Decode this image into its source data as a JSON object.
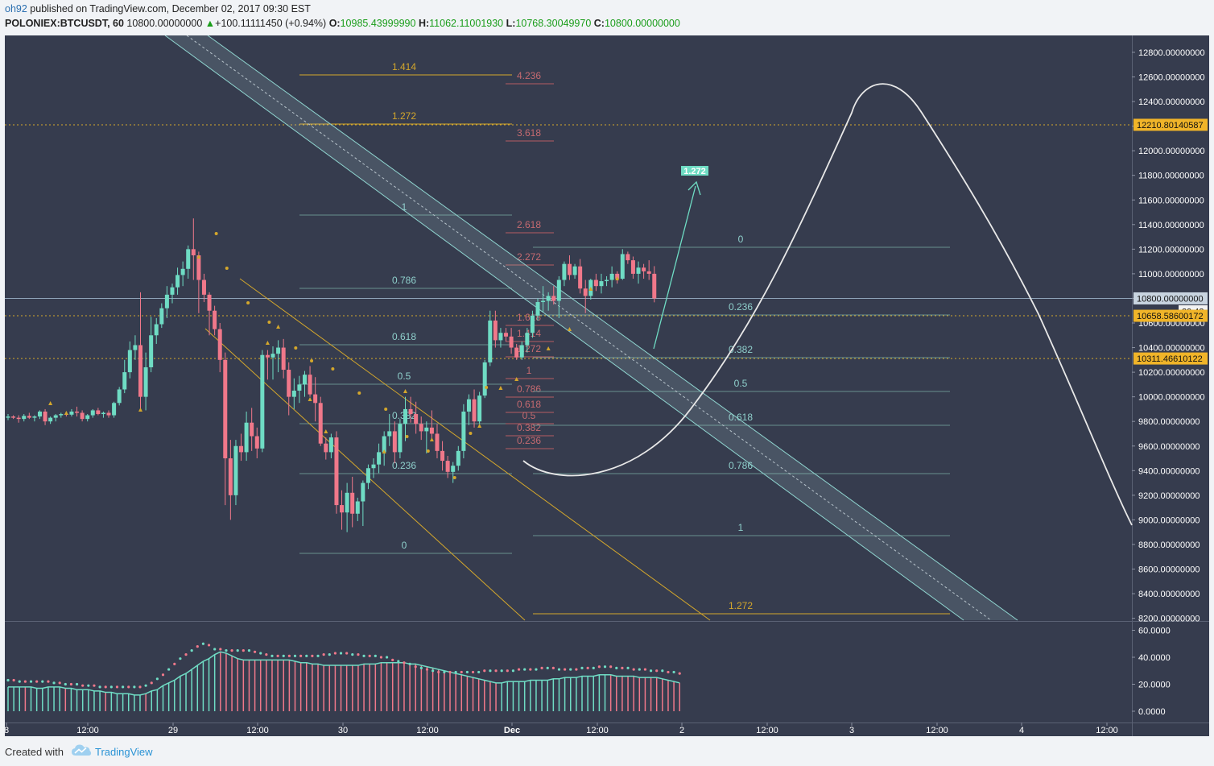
{
  "header": {
    "user": "oh92",
    "published": "published on TradingView.com, December 02, 2017 09:30 EST",
    "symbol": "POLONIEX:BTCUSDT, 60",
    "last": "10800.00000000",
    "change_arrow": "▲",
    "change": "+100.11111450 (+0.94%)",
    "o_label": "O:",
    "o": "10985.43999990",
    "h_label": "H:",
    "h": "11062.11001930",
    "l_label": "L:",
    "l": "10768.30049970",
    "c_label": "C:",
    "c": "10800.00000000"
  },
  "footer": {
    "created": "Created with",
    "brand": "TradingView"
  },
  "colors": {
    "background": "#363c4e",
    "up": "#6fdcc4",
    "down": "#f0788a",
    "grid": "#434a5e",
    "fib": "#6aa7a4",
    "fib_ext": "#b55d62",
    "gold": "#d4a72c",
    "channel": "#8fd4cf",
    "white": "#e8e8e8"
  },
  "chart_data": [
    {
      "type": "candlestick",
      "title": "POLONIEX:BTCUSDT, 60",
      "ylim": [
        8100,
        12900
      ],
      "y_ticks": [
        "12800.00000000",
        "12600.00000000",
        "12400.00000000",
        "12200.00000000",
        "12000.00000000",
        "11800.00000000",
        "11600.00000000",
        "11400.00000000",
        "11200.00000000",
        "11000.00000000",
        "10800.00000000",
        "10600.00000000",
        "10400.00000000",
        "10200.00000000",
        "10000.00000000",
        "9800.00000000",
        "9600.00000000",
        "9400.00000000",
        "9200.00000000",
        "9000.00000000",
        "8800.00000000",
        "8600.00000000",
        "8400.00000000",
        "8200.00000000"
      ],
      "x_ticks": [
        "8",
        "12:00",
        "29",
        "12:00",
        "30",
        "12:00",
        "Dec",
        "12:00",
        "2",
        "12:00",
        "3",
        "12:00",
        "4",
        "12:00"
      ],
      "price_labels": [
        {
          "text": "12210.80140587",
          "price": 12210.8,
          "style": "gold"
        },
        {
          "text": "10800.00000000",
          "price": 10800,
          "style": "current"
        },
        {
          "text": "29:43",
          "price": 10652,
          "style": "timer"
        },
        {
          "text": "10658.58600172",
          "price": 10658.586,
          "style": "gold"
        },
        {
          "text": "10311.46610122",
          "price": 10311.466,
          "style": "gold"
        }
      ],
      "candles_ohlc": [
        [
          9830,
          9860,
          9810,
          9840
        ],
        [
          9840,
          9850,
          9820,
          9830
        ],
        [
          9830,
          9850,
          9790,
          9820
        ],
        [
          9820,
          9860,
          9800,
          9845
        ],
        [
          9845,
          9870,
          9820,
          9830
        ],
        [
          9830,
          9850,
          9800,
          9840
        ],
        [
          9840,
          9890,
          9820,
          9880
        ],
        [
          9880,
          9900,
          9770,
          9800
        ],
        [
          9800,
          9840,
          9780,
          9830
        ],
        [
          9830,
          9860,
          9800,
          9850
        ],
        [
          9850,
          9870,
          9830,
          9860
        ],
        [
          9860,
          9880,
          9840,
          9855
        ],
        [
          9855,
          9900,
          9840,
          9880
        ],
        [
          9880,
          9920,
          9840,
          9870
        ],
        [
          9870,
          9890,
          9800,
          9820
        ],
        [
          9820,
          9860,
          9800,
          9850
        ],
        [
          9850,
          9900,
          9830,
          9890
        ],
        [
          9890,
          9910,
          9850,
          9860
        ],
        [
          9860,
          9880,
          9830,
          9870
        ],
        [
          9870,
          9890,
          9830,
          9850
        ],
        [
          9850,
          9960,
          9830,
          9950
        ],
        [
          9950,
          10080,
          9930,
          10060
        ],
        [
          10060,
          10300,
          10030,
          10200
        ],
        [
          10200,
          10450,
          10150,
          10380
        ],
        [
          10380,
          10500,
          10300,
          10420
        ],
        [
          10420,
          10850,
          9880,
          10000
        ],
        [
          10000,
          10360,
          9890,
          10240
        ],
        [
          10240,
          10650,
          10200,
          10500
        ],
        [
          10500,
          10640,
          10430,
          10590
        ],
        [
          10590,
          10760,
          10560,
          10720
        ],
        [
          10720,
          10900,
          10640,
          10830
        ],
        [
          10830,
          10920,
          10760,
          10890
        ],
        [
          10890,
          11050,
          10830,
          10990
        ],
        [
          10990,
          11100,
          10900,
          11040
        ],
        [
          11040,
          11230,
          10960,
          11200
        ],
        [
          11200,
          11450,
          10950,
          11150
        ],
        [
          11150,
          11180,
          10680,
          10950
        ],
        [
          10950,
          11000,
          10770,
          10830
        ],
        [
          10830,
          10850,
          10500,
          10700
        ],
        [
          10700,
          10740,
          10500,
          10550
        ],
        [
          10550,
          10600,
          10200,
          10300
        ],
        [
          10300,
          10360,
          9120,
          9500
        ],
        [
          9500,
          9650,
          9000,
          9200
        ],
        [
          9200,
          9650,
          9120,
          9600
        ],
        [
          9600,
          9700,
          9480,
          9550
        ],
        [
          9550,
          9880,
          9480,
          9790
        ],
        [
          9790,
          9910,
          9560,
          9680
        ],
        [
          9680,
          9750,
          9500,
          9580
        ],
        [
          9580,
          10380,
          9550,
          10340
        ],
        [
          10340,
          10380,
          10140,
          10320
        ],
        [
          10320,
          10410,
          10140,
          10350
        ],
        [
          10350,
          10460,
          10200,
          10400
        ],
        [
          10400,
          10470,
          10150,
          10220
        ],
        [
          10220,
          10280,
          9850,
          10000
        ],
        [
          10000,
          10150,
          9900,
          10050
        ],
        [
          10050,
          10170,
          9950,
          10100
        ],
        [
          10100,
          10210,
          10000,
          10180
        ],
        [
          10180,
          10250,
          10000,
          10020
        ],
        [
          10020,
          10160,
          9800,
          9950
        ],
        [
          9950,
          10000,
          9600,
          9620
        ],
        [
          9620,
          9670,
          9490,
          9550
        ],
        [
          9550,
          9700,
          9500,
          9670
        ],
        [
          9670,
          9720,
          9050,
          9120
        ],
        [
          9120,
          9240,
          8920,
          9060
        ],
        [
          9060,
          9300,
          8900,
          9220
        ],
        [
          9220,
          9350,
          8940,
          9050
        ],
        [
          9050,
          9180,
          8990,
          9150
        ],
        [
          9150,
          9320,
          8950,
          9300
        ],
        [
          9300,
          9450,
          9250,
          9420
        ],
        [
          9420,
          9500,
          9340,
          9450
        ],
        [
          9450,
          9620,
          9380,
          9550
        ],
        [
          9550,
          9720,
          9440,
          9680
        ],
        [
          9680,
          9860,
          9600,
          9720
        ],
        [
          9720,
          9800,
          9460,
          9550
        ],
        [
          9550,
          9820,
          9500,
          9780
        ],
        [
          9780,
          10000,
          9640,
          9900
        ],
        [
          9900,
          10000,
          9790,
          9860
        ],
        [
          9860,
          9960,
          9700,
          9780
        ],
        [
          9780,
          9840,
          9650,
          9720
        ],
        [
          9720,
          9800,
          9540,
          9750
        ],
        [
          9750,
          9890,
          9650,
          9700
        ],
        [
          9700,
          9780,
          9500,
          9560
        ],
        [
          9560,
          9640,
          9400,
          9480
        ],
        [
          9480,
          9520,
          9340,
          9390
        ],
        [
          9390,
          9470,
          9300,
          9440
        ],
        [
          9440,
          9600,
          9400,
          9560
        ],
        [
          9560,
          9940,
          9500,
          9880
        ],
        [
          9880,
          10020,
          9770,
          9980
        ],
        [
          9980,
          10060,
          9750,
          9800
        ],
        [
          9800,
          10040,
          9780,
          10010
        ],
        [
          10010,
          10300,
          9990,
          10280
        ],
        [
          10280,
          10700,
          10250,
          10620
        ],
        [
          10620,
          10700,
          10400,
          10460
        ],
        [
          10460,
          10560,
          10400,
          10520
        ],
        [
          10520,
          10560,
          10450,
          10490
        ],
        [
          10490,
          10560,
          10350,
          10400
        ],
        [
          10400,
          10430,
          10300,
          10320
        ],
        [
          10320,
          10450,
          10300,
          10420
        ],
        [
          10420,
          10560,
          10360,
          10520
        ],
        [
          10520,
          10700,
          10480,
          10660
        ],
        [
          10660,
          10800,
          10620,
          10770
        ],
        [
          10770,
          10900,
          10690,
          10780
        ],
        [
          10780,
          10850,
          10700,
          10820
        ],
        [
          10820,
          10900,
          10750,
          10780
        ],
        [
          10780,
          10980,
          10640,
          10950
        ],
        [
          10950,
          11100,
          10900,
          11080
        ],
        [
          11080,
          11150,
          10950,
          10990
        ],
        [
          10990,
          11080,
          10960,
          11060
        ],
        [
          11060,
          11120,
          10840,
          10880
        ],
        [
          10880,
          10950,
          10680,
          10820
        ],
        [
          10820,
          10960,
          10790,
          10950
        ],
        [
          10950,
          11000,
          10860,
          10900
        ],
        [
          10900,
          11000,
          10840,
          10940
        ],
        [
          10940,
          10980,
          10900,
          10950
        ],
        [
          10950,
          11060,
          10890,
          11000
        ],
        [
          11000,
          11020,
          10920,
          10960
        ],
        [
          10960,
          11200,
          10950,
          11160
        ],
        [
          11160,
          11180,
          11080,
          11110
        ],
        [
          11110,
          11140,
          10960,
          11000
        ],
        [
          11000,
          11100,
          10920,
          11050
        ],
        [
          11050,
          11080,
          10960,
          11020
        ],
        [
          11020,
          11110,
          10950,
          11000
        ],
        [
          11000,
          11062,
          10768,
          10800
        ]
      ],
      "fib_retracement_1": {
        "levels": [
          "1.414",
          "1.272",
          "1",
          "0.786",
          "0.618",
          "0.5",
          "0.382",
          "0.236",
          "0"
        ]
      },
      "fib_extension": {
        "levels": [
          "4.236",
          "3.618",
          "2.618",
          "2.272",
          "1.618",
          "1.414",
          "1.272",
          "1",
          "0.786",
          "0.618",
          "0.5",
          "0.382",
          "0.236"
        ]
      },
      "fib_retracement_2": {
        "levels": [
          "0",
          "0.236",
          "0.382",
          "0.5",
          "0.618",
          "0.786",
          "1",
          "1.272"
        ]
      },
      "annotation_target": "1.272"
    },
    {
      "type": "bar",
      "ylim": [
        -5,
        65
      ],
      "y_ticks": [
        "60.0000",
        "40.0000",
        "20.0000",
        "0.0000"
      ],
      "values": [
        18,
        18,
        18,
        18,
        18,
        17,
        17,
        18,
        18,
        18,
        17,
        17,
        16,
        16,
        16,
        15,
        15,
        14,
        14,
        13,
        13,
        13,
        12,
        12,
        13,
        15,
        16,
        19,
        21,
        23,
        26,
        28,
        31,
        34,
        37,
        39,
        42,
        44,
        43,
        41,
        39,
        38,
        38,
        38,
        38,
        38,
        38,
        38,
        38,
        38,
        37,
        36,
        36,
        35,
        35,
        34,
        34,
        34,
        34,
        34,
        34,
        34,
        35,
        35,
        35,
        36,
        36,
        36,
        36,
        36,
        35,
        35,
        34,
        33,
        32,
        31,
        30,
        29,
        28,
        27,
        26,
        25,
        24,
        23,
        22,
        21,
        21,
        22,
        22,
        22,
        22,
        23,
        23,
        23,
        23,
        24,
        24,
        25,
        25,
        25,
        26,
        26,
        26,
        27,
        27,
        27,
        26,
        26,
        26,
        26,
        25,
        25,
        25,
        25,
        24,
        23,
        22,
        21
      ],
      "dots": [
        23,
        23,
        22,
        22,
        22,
        22,
        22,
        22,
        21,
        21,
        20,
        20,
        20,
        19,
        19,
        19,
        18,
        18,
        18,
        18,
        18,
        18,
        18,
        18,
        19,
        21,
        24,
        27,
        31,
        35,
        39,
        42,
        45,
        48,
        50,
        49,
        46,
        46,
        45,
        45,
        45,
        45,
        45,
        44,
        43,
        42,
        41,
        41,
        41,
        41,
        41,
        41,
        41,
        41,
        41,
        42,
        42,
        43,
        43,
        43,
        42,
        42,
        41,
        41,
        41,
        40,
        40,
        38,
        37,
        36,
        35,
        33,
        32,
        31,
        30,
        29,
        29,
        29,
        29,
        29,
        29,
        29,
        29,
        30,
        30,
        30,
        30,
        30,
        30,
        31,
        31,
        31,
        31,
        32,
        32,
        32,
        31,
        31,
        31,
        31,
        32,
        32,
        32,
        33,
        33,
        33,
        32,
        32,
        32,
        31,
        31,
        31,
        30,
        30,
        30,
        29,
        29,
        28
      ]
    }
  ]
}
